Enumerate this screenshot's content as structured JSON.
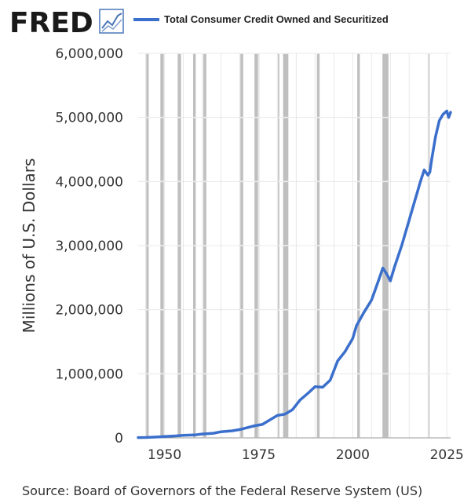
{
  "logo": {
    "text": "FRED",
    "icon": "line-chart-icon"
  },
  "legend": {
    "label": "Total Consumer Credit Owned and Securitized",
    "color": "#3b6fcc"
  },
  "source_text": "Source: Board of Governors of the Federal Reserve System (US)",
  "colors": {
    "series": "#3b6fcc",
    "recession": "#bfbfbf",
    "grid": "#ffffff",
    "plot_bg": "#ffffff"
  },
  "chart_data": {
    "type": "line",
    "title": "",
    "xlabel": "",
    "ylabel": "Millions of U.S. Dollars",
    "xlim": [
      1943,
      2026
    ],
    "ylim": [
      0,
      6000000
    ],
    "x_ticks": [
      1950,
      1975,
      2000,
      2025
    ],
    "x_tick_labels": [
      "1950",
      "1975",
      "2000",
      "2025"
    ],
    "y_ticks": [
      0,
      1000000,
      2000000,
      3000000,
      4000000,
      5000000,
      6000000
    ],
    "y_tick_labels": [
      "0",
      "1,000,000",
      "2,000,000",
      "3,000,000",
      "4,000,000",
      "5,000,000",
      "6,000,000"
    ],
    "grid": true,
    "legend_position": "top",
    "recessions": [
      [
        1945.1,
        1945.8
      ],
      [
        1948.9,
        1949.8
      ],
      [
        1953.5,
        1954.4
      ],
      [
        1957.6,
        1958.3
      ],
      [
        1960.3,
        1961.1
      ],
      [
        1969.9,
        1970.9
      ],
      [
        1973.9,
        1975.2
      ],
      [
        1980.0,
        1980.5
      ],
      [
        1981.5,
        1982.9
      ],
      [
        1990.5,
        1991.2
      ],
      [
        2001.2,
        2001.9
      ],
      [
        2007.9,
        2009.5
      ],
      [
        2020.1,
        2020.3
      ]
    ],
    "series": [
      {
        "name": "Total Consumer Credit Owned and Securitized",
        "points": [
          [
            1943,
            5000
          ],
          [
            1945,
            6000
          ],
          [
            1948,
            13000
          ],
          [
            1950,
            21000
          ],
          [
            1953,
            30000
          ],
          [
            1955,
            40000
          ],
          [
            1958,
            45000
          ],
          [
            1960,
            60000
          ],
          [
            1963,
            72000
          ],
          [
            1965,
            95000
          ],
          [
            1968,
            110000
          ],
          [
            1970,
            130000
          ],
          [
            1972,
            160000
          ],
          [
            1974,
            190000
          ],
          [
            1976,
            210000
          ],
          [
            1978,
            280000
          ],
          [
            1980,
            350000
          ],
          [
            1982,
            370000
          ],
          [
            1984,
            440000
          ],
          [
            1986,
            590000
          ],
          [
            1988,
            690000
          ],
          [
            1990,
            800000
          ],
          [
            1992,
            790000
          ],
          [
            1994,
            900000
          ],
          [
            1996,
            1200000
          ],
          [
            1998,
            1350000
          ],
          [
            2000,
            1550000
          ],
          [
            2001,
            1750000
          ],
          [
            2003,
            1960000
          ],
          [
            2005,
            2150000
          ],
          [
            2007,
            2480000
          ],
          [
            2008,
            2650000
          ],
          [
            2009,
            2560000
          ],
          [
            2010,
            2450000
          ],
          [
            2011,
            2650000
          ],
          [
            2013,
            3000000
          ],
          [
            2015,
            3400000
          ],
          [
            2016,
            3600000
          ],
          [
            2017,
            3800000
          ],
          [
            2018,
            4000000
          ],
          [
            2019,
            4180000
          ],
          [
            2020,
            4100000
          ],
          [
            2020.5,
            4150000
          ],
          [
            2021,
            4350000
          ],
          [
            2022,
            4700000
          ],
          [
            2023,
            4950000
          ],
          [
            2024,
            5050000
          ],
          [
            2025,
            5100000
          ],
          [
            2025.5,
            5000000
          ],
          [
            2026,
            5080000
          ]
        ]
      }
    ]
  }
}
